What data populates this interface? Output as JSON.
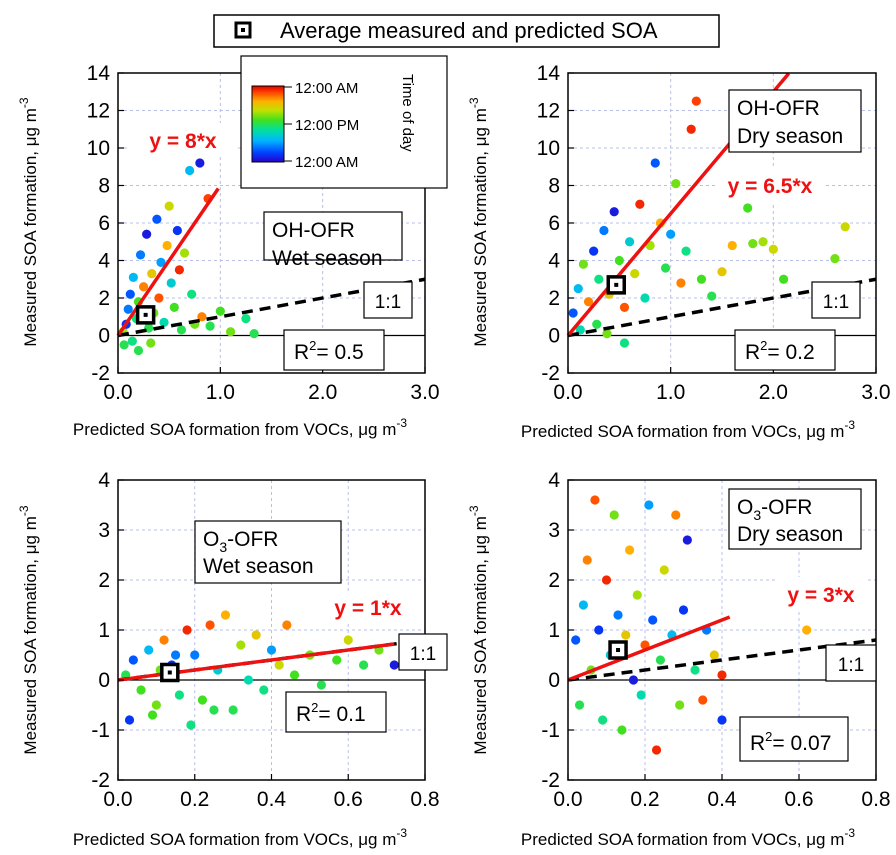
{
  "legend": {
    "label": "Average measured and predicted SOA"
  },
  "colorbar": {
    "title": "Time of day",
    "ticks": [
      "12:00 AM",
      "12:00 PM",
      "12:00 AM"
    ]
  },
  "chart_data": [
    {
      "type": "scatter",
      "xlabel": "Predicted SOA formation from VOCs, μg m",
      "xlabel_sup": "-3",
      "ylabel": "Measured SOA formation, μg m",
      "ylabel_sup": "-3",
      "xlim": [
        0,
        3.0
      ],
      "ylim": [
        -2,
        14
      ],
      "xticks": [
        0,
        1,
        2,
        3
      ],
      "xtick_labels": [
        "0.0",
        "1.0",
        "2.0",
        "3.0"
      ],
      "yticks": [
        -2,
        0,
        2,
        4,
        6,
        8,
        10,
        12,
        14
      ],
      "ytick_labels": [
        "-2",
        "0",
        "2",
        "4",
        "6",
        "8",
        "10",
        "12",
        "14"
      ],
      "panel_label": [
        "OH-OFR",
        "Wet season"
      ],
      "fit_label": "y = 8*x",
      "fit_slope": 8,
      "ref_label": "1:1",
      "r2_prefix": "R",
      "r2_sup": "2",
      "r2_value": "= 0.5",
      "average": {
        "x": 0.27,
        "y": 1.1
      },
      "points": [
        {
          "x": 0.05,
          "y": 0.2,
          "t": 0.65
        },
        {
          "x": 0.08,
          "y": 0.6,
          "t": 0.1
        },
        {
          "x": 0.1,
          "y": 1.4,
          "t": 0.2
        },
        {
          "x": 0.12,
          "y": 2.2,
          "t": 0.15
        },
        {
          "x": 0.15,
          "y": 3.1,
          "t": 0.3
        },
        {
          "x": 0.18,
          "y": 0.9,
          "t": 0.45
        },
        {
          "x": 0.2,
          "y": 1.8,
          "t": 0.55
        },
        {
          "x": 0.22,
          "y": 4.3,
          "t": 0.2
        },
        {
          "x": 0.25,
          "y": 2.6,
          "t": 0.85
        },
        {
          "x": 0.28,
          "y": 5.4,
          "t": 0.05
        },
        {
          "x": 0.3,
          "y": 0.4,
          "t": 0.5
        },
        {
          "x": 0.33,
          "y": 3.3,
          "t": 0.75
        },
        {
          "x": 0.35,
          "y": 1.2,
          "t": 0.6
        },
        {
          "x": 0.38,
          "y": 6.2,
          "t": 0.15
        },
        {
          "x": 0.4,
          "y": 2.0,
          "t": 0.9
        },
        {
          "x": 0.42,
          "y": 3.9,
          "t": 0.25
        },
        {
          "x": 0.45,
          "y": 0.7,
          "t": 0.4
        },
        {
          "x": 0.48,
          "y": 4.8,
          "t": 0.8
        },
        {
          "x": 0.5,
          "y": 6.9,
          "t": 0.7
        },
        {
          "x": 0.52,
          "y": 2.8,
          "t": 0.35
        },
        {
          "x": 0.55,
          "y": 1.5,
          "t": 0.55
        },
        {
          "x": 0.58,
          "y": 5.6,
          "t": 0.1
        },
        {
          "x": 0.6,
          "y": 3.5,
          "t": 0.95
        },
        {
          "x": 0.62,
          "y": 0.3,
          "t": 0.5
        },
        {
          "x": 0.65,
          "y": 4.4,
          "t": 0.65
        },
        {
          "x": 0.7,
          "y": 8.8,
          "t": 0.3
        },
        {
          "x": 0.72,
          "y": 2.2,
          "t": 0.45
        },
        {
          "x": 0.75,
          "y": 0.6,
          "t": 0.6
        },
        {
          "x": 0.8,
          "y": 9.2,
          "t": 0.05
        },
        {
          "x": 0.82,
          "y": 1.0,
          "t": 0.85
        },
        {
          "x": 0.88,
          "y": 7.3,
          "t": 0.92
        },
        {
          "x": 0.9,
          "y": 0.5,
          "t": 0.5
        },
        {
          "x": 1.0,
          "y": 1.3,
          "t": 0.55
        },
        {
          "x": 1.1,
          "y": 0.2,
          "t": 0.6
        },
        {
          "x": 1.25,
          "y": 0.9,
          "t": 0.45
        },
        {
          "x": 1.33,
          "y": 0.1,
          "t": 0.5
        },
        {
          "x": 0.06,
          "y": -0.5,
          "t": 0.5
        },
        {
          "x": 0.14,
          "y": -0.3,
          "t": 0.45
        },
        {
          "x": 0.2,
          "y": -0.8,
          "t": 0.5
        },
        {
          "x": 0.32,
          "y": -0.4,
          "t": 0.6
        }
      ]
    },
    {
      "type": "scatter",
      "xlabel": "Predicted SOA formation from VOCs, μg m",
      "xlabel_sup": "-3",
      "ylabel": "Measured SOA formation, μg m",
      "ylabel_sup": "-3",
      "xlim": [
        0,
        3.0
      ],
      "ylim": [
        -2,
        14
      ],
      "xticks": [
        0,
        1,
        2,
        3
      ],
      "xtick_labels": [
        "0.0",
        "1.0",
        "2.0",
        "3.0"
      ],
      "yticks": [
        -2,
        0,
        2,
        4,
        6,
        8,
        10,
        12,
        14
      ],
      "ytick_labels": [
        "-2",
        "0",
        "2",
        "4",
        "6",
        "8",
        "10",
        "12",
        "14"
      ],
      "panel_label": [
        "OH-OFR",
        "Dry season"
      ],
      "fit_label": "y = 6.5*x",
      "fit_slope": 6.5,
      "ref_label": "1:1",
      "r2_prefix": "R",
      "r2_sup": "2",
      "r2_value": "= 0.2",
      "average": {
        "x": 0.47,
        "y": 2.7
      },
      "points": [
        {
          "x": 0.05,
          "y": 1.2,
          "t": 0.15
        },
        {
          "x": 0.1,
          "y": 2.5,
          "t": 0.3
        },
        {
          "x": 0.15,
          "y": 3.8,
          "t": 0.6
        },
        {
          "x": 0.2,
          "y": 1.8,
          "t": 0.85
        },
        {
          "x": 0.25,
          "y": 4.5,
          "t": 0.1
        },
        {
          "x": 0.3,
          "y": 3.0,
          "t": 0.45
        },
        {
          "x": 0.35,
          "y": 5.6,
          "t": 0.2
        },
        {
          "x": 0.4,
          "y": 2.2,
          "t": 0.75
        },
        {
          "x": 0.45,
          "y": 6.6,
          "t": 0.05
        },
        {
          "x": 0.5,
          "y": 4.0,
          "t": 0.55
        },
        {
          "x": 0.55,
          "y": 1.5,
          "t": 0.9
        },
        {
          "x": 0.6,
          "y": 5.0,
          "t": 0.35
        },
        {
          "x": 0.65,
          "y": 3.3,
          "t": 0.7
        },
        {
          "x": 0.7,
          "y": 7.0,
          "t": 0.95
        },
        {
          "x": 0.75,
          "y": 2.0,
          "t": 0.4
        },
        {
          "x": 0.8,
          "y": 4.8,
          "t": 0.65
        },
        {
          "x": 0.85,
          "y": 9.2,
          "t": 0.15
        },
        {
          "x": 0.9,
          "y": 6.0,
          "t": 0.8
        },
        {
          "x": 0.95,
          "y": 3.6,
          "t": 0.5
        },
        {
          "x": 1.0,
          "y": 5.4,
          "t": 0.25
        },
        {
          "x": 1.05,
          "y": 8.1,
          "t": 0.6
        },
        {
          "x": 1.1,
          "y": 2.8,
          "t": 0.85
        },
        {
          "x": 1.15,
          "y": 4.5,
          "t": 0.45
        },
        {
          "x": 1.2,
          "y": 11.0,
          "t": 0.95
        },
        {
          "x": 1.25,
          "y": 12.5,
          "t": 0.92
        },
        {
          "x": 1.3,
          "y": 3.0,
          "t": 0.55
        },
        {
          "x": 1.4,
          "y": 2.1,
          "t": 0.5
        },
        {
          "x": 1.5,
          "y": 3.4,
          "t": 0.75
        },
        {
          "x": 1.6,
          "y": 4.8,
          "t": 0.8
        },
        {
          "x": 1.75,
          "y": 6.8,
          "t": 0.55
        },
        {
          "x": 1.8,
          "y": 4.9,
          "t": 0.6
        },
        {
          "x": 1.9,
          "y": 5.0,
          "t": 0.65
        },
        {
          "x": 2.0,
          "y": 4.6,
          "t": 0.7
        },
        {
          "x": 2.1,
          "y": 3.0,
          "t": 0.55
        },
        {
          "x": 2.6,
          "y": 4.1,
          "t": 0.6
        },
        {
          "x": 2.7,
          "y": 5.8,
          "t": 0.7
        },
        {
          "x": 0.12,
          "y": 0.3,
          "t": 0.4
        },
        {
          "x": 0.28,
          "y": 0.6,
          "t": 0.5
        },
        {
          "x": 0.55,
          "y": -0.4,
          "t": 0.45
        },
        {
          "x": 0.38,
          "y": 0.1,
          "t": 0.6
        }
      ]
    },
    {
      "type": "scatter",
      "xlabel": "Predicted SOA formation from VOCs, μg m",
      "xlabel_sup": "-3",
      "ylabel": "Measured SOA formation, μg m",
      "ylabel_sup": "-3",
      "xlim": [
        0,
        0.8
      ],
      "ylim": [
        -2,
        4
      ],
      "xticks": [
        0,
        0.2,
        0.4,
        0.6,
        0.8
      ],
      "xtick_labels": [
        "0.0",
        "0.2",
        "0.4",
        "0.6",
        "0.8"
      ],
      "yticks": [
        -2,
        -1,
        0,
        1,
        2,
        3,
        4
      ],
      "ytick_labels": [
        "-2",
        "-1",
        "0",
        "1",
        "2",
        "3",
        "4"
      ],
      "panel_label_pre": "O",
      "panel_label_sub": "3",
      "panel_label_post": "-OFR",
      "panel_label_line2": "Wet season",
      "fit_label": "y = 1*x",
      "fit_slope": 1,
      "ref_label": "1:1",
      "r2_prefix": "R",
      "r2_sup": "2",
      "r2_value": "= 0.1",
      "average": {
        "x": 0.135,
        "y": 0.15
      },
      "points": [
        {
          "x": 0.02,
          "y": 0.1,
          "t": 0.5
        },
        {
          "x": 0.04,
          "y": 0.4,
          "t": 0.15
        },
        {
          "x": 0.06,
          "y": -0.2,
          "t": 0.55
        },
        {
          "x": 0.08,
          "y": 0.6,
          "t": 0.3
        },
        {
          "x": 0.1,
          "y": -0.5,
          "t": 0.6
        },
        {
          "x": 0.12,
          "y": 0.8,
          "t": 0.85
        },
        {
          "x": 0.14,
          "y": 0.3,
          "t": 0.1
        },
        {
          "x": 0.16,
          "y": -0.3,
          "t": 0.45
        },
        {
          "x": 0.18,
          "y": 1.0,
          "t": 0.95
        },
        {
          "x": 0.2,
          "y": 0.5,
          "t": 0.2
        },
        {
          "x": 0.22,
          "y": -0.4,
          "t": 0.55
        },
        {
          "x": 0.24,
          "y": 1.1,
          "t": 0.9
        },
        {
          "x": 0.26,
          "y": 0.2,
          "t": 0.35
        },
        {
          "x": 0.28,
          "y": 1.3,
          "t": 0.8
        },
        {
          "x": 0.3,
          "y": -0.6,
          "t": 0.5
        },
        {
          "x": 0.32,
          "y": 0.7,
          "t": 0.65
        },
        {
          "x": 0.34,
          "y": 0.0,
          "t": 0.4
        },
        {
          "x": 0.36,
          "y": 0.9,
          "t": 0.75
        },
        {
          "x": 0.38,
          "y": -0.2,
          "t": 0.45
        },
        {
          "x": 0.4,
          "y": 0.6,
          "t": 0.25
        },
        {
          "x": 0.42,
          "y": 0.3,
          "t": 0.7
        },
        {
          "x": 0.44,
          "y": 1.1,
          "t": 0.85
        },
        {
          "x": 0.46,
          "y": 0.1,
          "t": 0.55
        },
        {
          "x": 0.5,
          "y": 0.5,
          "t": 0.6
        },
        {
          "x": 0.53,
          "y": -0.1,
          "t": 0.5
        },
        {
          "x": 0.57,
          "y": 0.4,
          "t": 0.55
        },
        {
          "x": 0.6,
          "y": 0.8,
          "t": 0.7
        },
        {
          "x": 0.64,
          "y": 0.3,
          "t": 0.5
        },
        {
          "x": 0.68,
          "y": 0.6,
          "t": 0.6
        },
        {
          "x": 0.72,
          "y": 0.3,
          "t": 0.05
        },
        {
          "x": 0.03,
          "y": -0.8,
          "t": 0.1
        },
        {
          "x": 0.09,
          "y": -0.7,
          "t": 0.55
        },
        {
          "x": 0.19,
          "y": -0.9,
          "t": 0.45
        },
        {
          "x": 0.25,
          "y": -0.6,
          "t": 0.5
        },
        {
          "x": 0.15,
          "y": 0.5,
          "t": 0.2
        },
        {
          "x": 0.11,
          "y": 0.2,
          "t": 0.6
        }
      ]
    },
    {
      "type": "scatter",
      "xlabel": "Predicted SOA formation from VOCs, μg m",
      "xlabel_sup": "-3",
      "ylabel": "Measured SOA formation, μg m",
      "ylabel_sup": "-3",
      "xlim": [
        0,
        0.8
      ],
      "ylim": [
        -2,
        4
      ],
      "xticks": [
        0,
        0.2,
        0.4,
        0.6,
        0.8
      ],
      "xtick_labels": [
        "0.0",
        "0.2",
        "0.4",
        "0.6",
        "0.8"
      ],
      "yticks": [
        -2,
        -1,
        0,
        1,
        2,
        3,
        4
      ],
      "ytick_labels": [
        "-2",
        "-1",
        "0",
        "1",
        "2",
        "3",
        "4"
      ],
      "panel_label_pre": "O",
      "panel_label_sub": "3",
      "panel_label_post": "-OFR",
      "panel_label_line2": "Dry season",
      "fit_label": "y = 3*x",
      "fit_slope": 3,
      "ref_label": "1:1",
      "r2_prefix": "R",
      "r2_sup": "2",
      "r2_value": "= 0.07",
      "average": {
        "x": 0.13,
        "y": 0.6
      },
      "points": [
        {
          "x": 0.02,
          "y": 0.8,
          "t": 0.15
        },
        {
          "x": 0.03,
          "y": -0.5,
          "t": 0.5
        },
        {
          "x": 0.04,
          "y": 1.5,
          "t": 0.3
        },
        {
          "x": 0.05,
          "y": 2.4,
          "t": 0.85
        },
        {
          "x": 0.06,
          "y": 0.2,
          "t": 0.6
        },
        {
          "x": 0.07,
          "y": 3.6,
          "t": 0.9
        },
        {
          "x": 0.08,
          "y": 1.0,
          "t": 0.1
        },
        {
          "x": 0.09,
          "y": -0.8,
          "t": 0.45
        },
        {
          "x": 0.1,
          "y": 2.0,
          "t": 0.95
        },
        {
          "x": 0.11,
          "y": 0.5,
          "t": 0.35
        },
        {
          "x": 0.12,
          "y": 3.3,
          "t": 0.6
        },
        {
          "x": 0.13,
          "y": 1.3,
          "t": 0.2
        },
        {
          "x": 0.14,
          "y": -1.0,
          "t": 0.55
        },
        {
          "x": 0.15,
          "y": 0.9,
          "t": 0.75
        },
        {
          "x": 0.16,
          "y": 2.6,
          "t": 0.8
        },
        {
          "x": 0.17,
          "y": 0.0,
          "t": 0.05
        },
        {
          "x": 0.18,
          "y": 1.7,
          "t": 0.65
        },
        {
          "x": 0.19,
          "y": -0.3,
          "t": 0.4
        },
        {
          "x": 0.2,
          "y": 0.7,
          "t": 0.9
        },
        {
          "x": 0.21,
          "y": 3.5,
          "t": 0.25
        },
        {
          "x": 0.22,
          "y": 1.2,
          "t": 0.15
        },
        {
          "x": 0.23,
          "y": -1.4,
          "t": 0.95
        },
        {
          "x": 0.24,
          "y": 0.4,
          "t": 0.5
        },
        {
          "x": 0.25,
          "y": 2.2,
          "t": 0.7
        },
        {
          "x": 0.27,
          "y": 0.9,
          "t": 0.3
        },
        {
          "x": 0.28,
          "y": 3.3,
          "t": 0.85
        },
        {
          "x": 0.29,
          "y": -0.5,
          "t": 0.6
        },
        {
          "x": 0.3,
          "y": 1.4,
          "t": 0.1
        },
        {
          "x": 0.31,
          "y": 2.8,
          "t": 0.05
        },
        {
          "x": 0.33,
          "y": 0.2,
          "t": 0.45
        },
        {
          "x": 0.35,
          "y": -0.4,
          "t": 0.9
        },
        {
          "x": 0.36,
          "y": 1.0,
          "t": 0.2
        },
        {
          "x": 0.38,
          "y": 0.5,
          "t": 0.75
        },
        {
          "x": 0.4,
          "y": 0.1,
          "t": 0.95
        },
        {
          "x": 0.4,
          "y": -0.8,
          "t": 0.1
        },
        {
          "x": 0.62,
          "y": 1.0,
          "t": 0.8
        }
      ]
    }
  ]
}
